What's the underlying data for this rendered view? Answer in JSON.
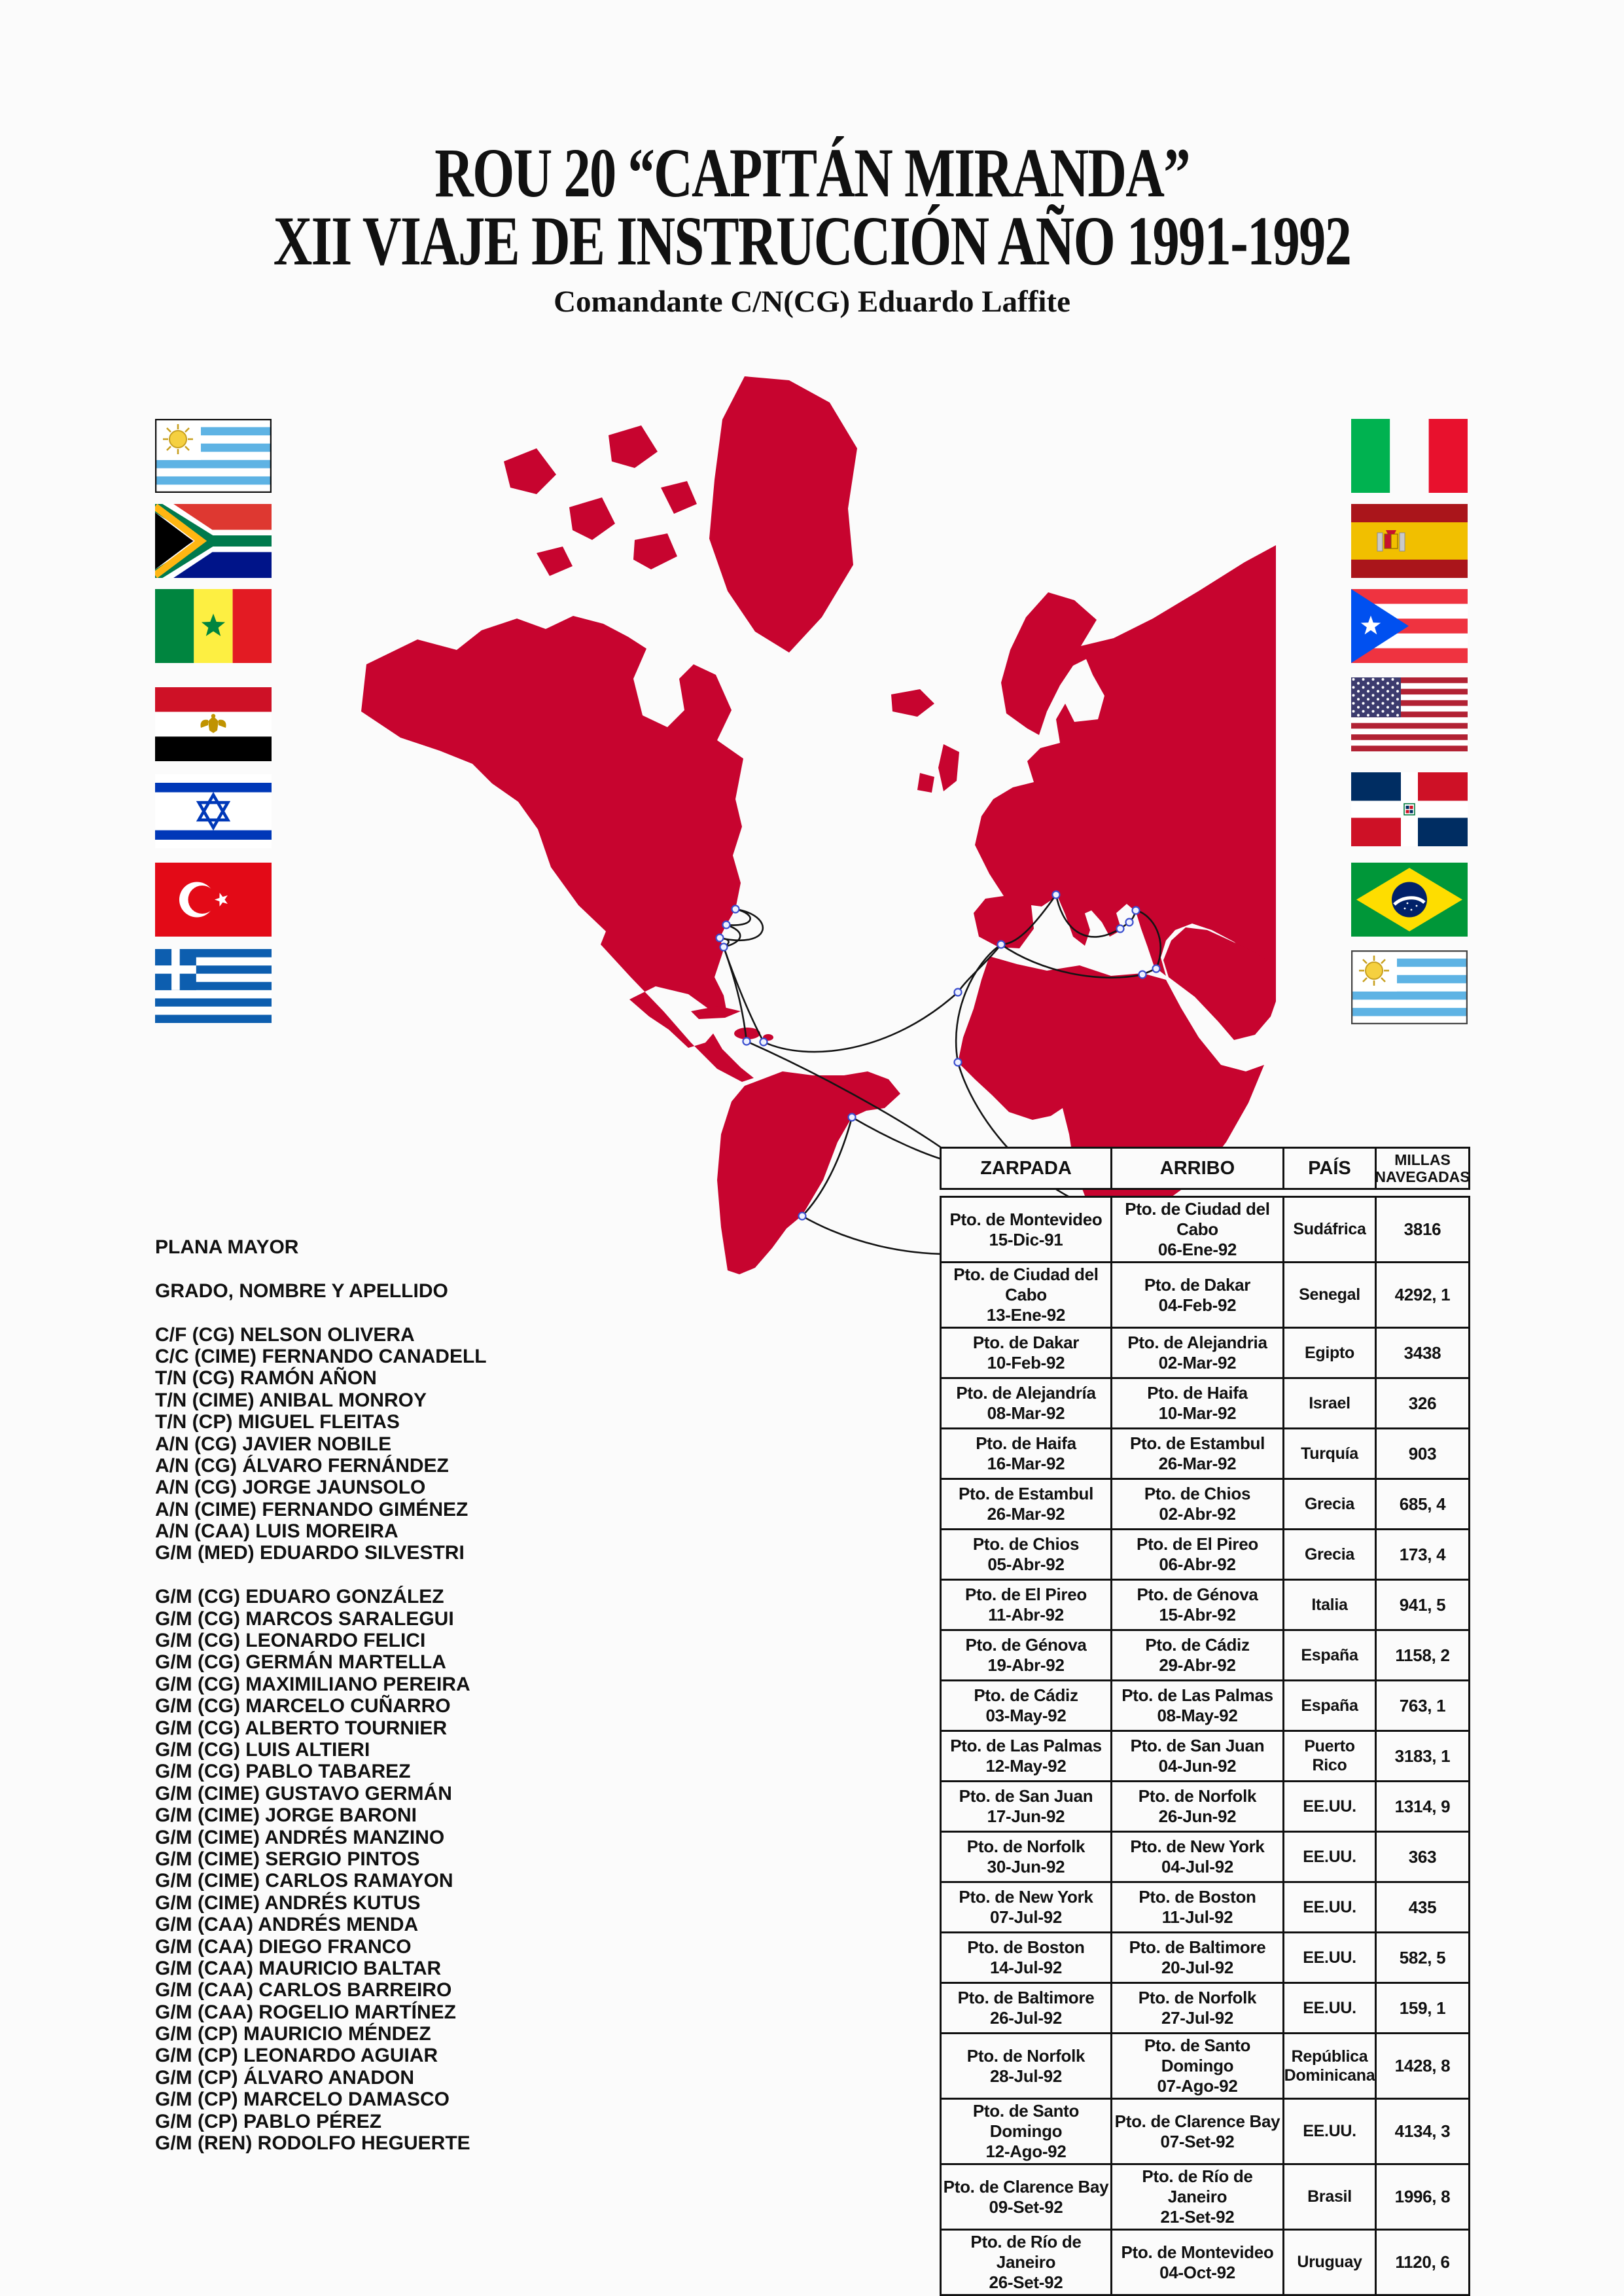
{
  "title": {
    "line1": "ROU 20 “CAPITÁN MIRANDA”",
    "line2": "XII VIAJE DE INSTRUCCIÓN AÑO 1991-1992",
    "subtitle": "Comandante C/N(CG) Eduardo Laffite"
  },
  "colors": {
    "map_red": "#C7042F",
    "background": "#FBFBFB",
    "route_line": "#141414",
    "port_marker_stroke": "#3A4ECF"
  },
  "flags": {
    "left": [
      "Uruguay",
      "Sudáfrica",
      "Senegal",
      "Egipto",
      "Israel",
      "Turquía",
      "Grecia"
    ],
    "right": [
      "Italia",
      "España",
      "Puerto Rico",
      "EE.UU.",
      "República Dominicana",
      "Brasil",
      "Uruguay"
    ]
  },
  "crew": {
    "title": "PLANA MAYOR",
    "subtitle": "GRADO, NOMBRE Y APELLIDO",
    "officers": [
      "C/F (CG) NELSON OLIVERA",
      "C/C (CIME) FERNANDO CANADELL",
      "T/N (CG) RAMÓN AÑON",
      "T/N (CIME) ANIBAL MONROY",
      "T/N (CP) MIGUEL FLEITAS",
      "A/N (CG) JAVIER NOBILE",
      "A/N (CG) ÁLVARO FERNÁNDEZ",
      "A/N (CG) JORGE JAUNSOLO",
      "A/N (CIME) FERNANDO GIMÉNEZ",
      "A/N (CAA) LUIS MOREIRA",
      "G/M (MED) EDUARDO SILVESTRI"
    ],
    "cadets": [
      "G/M (CG) EDUARO GONZÁLEZ",
      "G/M (CG) MARCOS SARALEGUI",
      "G/M (CG) LEONARDO FELICI",
      "G/M (CG) GERMÁN MARTELLA",
      "G/M (CG) MAXIMILIANO PEREIRA",
      "G/M (CG) MARCELO CUÑARRO",
      "G/M (CG) ALBERTO TOURNIER",
      "G/M (CG) LUIS ALTIERI",
      "G/M (CG) PABLO TABAREZ",
      "G/M (CIME) GUSTAVO GERMÁN",
      "G/M (CIME) JORGE BARONI",
      "G/M (CIME) ANDRÉS MANZINO",
      "G/M (CIME) SERGIO PINTOS",
      "G/M (CIME) CARLOS RAMAYON",
      "G/M (CIME) ANDRÉS KUTUS",
      "G/M (CAA) ANDRÉS MENDA",
      "G/M (CAA) DIEGO FRANCO",
      "G/M (CAA) MAURICIO BALTAR",
      "G/M (CAA) CARLOS BARREIRO",
      "G/M (CAA) ROGELIO MARTÍNEZ",
      "G/M (CP) MAURICIO MÉNDEZ",
      "G/M (CP) LEONARDO AGUIAR",
      "G/M (CP) ÁLVARO ANADON",
      "G/M (CP) MARCELO DAMASCO",
      "G/M (CP) PABLO PÉREZ",
      "G/M (REN) RODOLFO HEGUERTE"
    ]
  },
  "table": {
    "headers": [
      "ZARPADA",
      "ARRIBO",
      "PAÍS",
      "MILLAS NAVEGADAS"
    ],
    "rows": [
      [
        "Pto. de Montevideo",
        "15-Dic-91",
        "Pto. de Ciudad del Cabo",
        "06-Ene-92",
        "Sudáfrica",
        "3816"
      ],
      [
        "Pto. de Ciudad del Cabo",
        "13-Ene-92",
        "Pto. de Dakar",
        "04-Feb-92",
        "Senegal",
        "4292, 1"
      ],
      [
        "Pto. de Dakar",
        "10-Feb-92",
        "Pto. de Alejandria",
        "02-Mar-92",
        "Egipto",
        "3438"
      ],
      [
        "Pto. de Alejandría",
        "08-Mar-92",
        "Pto. de Haifa",
        "10-Mar-92",
        "Israel",
        "326"
      ],
      [
        "Pto. de Haifa",
        "16-Mar-92",
        "Pto. de Estambul",
        "26-Mar-92",
        "Turquía",
        "903"
      ],
      [
        "Pto. de Estambul",
        "26-Mar-92",
        "Pto. de Chios",
        "02-Abr-92",
        "Grecia",
        "685, 4"
      ],
      [
        "Pto. de Chios",
        "05-Abr-92",
        "Pto. de El Pireo",
        "06-Abr-92",
        "Grecia",
        "173, 4"
      ],
      [
        "Pto. de El Pireo",
        "11-Abr-92",
        "Pto. de Génova",
        "15-Abr-92",
        "Italia",
        "941, 5"
      ],
      [
        "Pto. de Génova",
        "19-Abr-92",
        "Pto. de Cádiz",
        "29-Abr-92",
        "España",
        "1158, 2"
      ],
      [
        "Pto. de Cádiz",
        "03-May-92",
        "Pto. de Las Palmas",
        "08-May-92",
        "España",
        "763, 1"
      ],
      [
        "Pto. de Las Palmas",
        "12-May-92",
        "Pto. de San Juan",
        "04-Jun-92",
        "Puerto Rico",
        "3183, 1"
      ],
      [
        "Pto. de San Juan",
        "17-Jun-92",
        "Pto. de Norfolk",
        "26-Jun-92",
        "EE.UU.",
        "1314, 9"
      ],
      [
        "Pto. de Norfolk",
        "30-Jun-92",
        "Pto. de New York",
        "04-Jul-92",
        "EE.UU.",
        "363"
      ],
      [
        "Pto. de New York",
        "07-Jul-92",
        "Pto. de Boston",
        "11-Jul-92",
        "EE.UU.",
        "435"
      ],
      [
        "Pto. de Boston",
        "14-Jul-92",
        "Pto. de Baltimore",
        "20-Jul-92",
        "EE.UU.",
        "582, 5"
      ],
      [
        "Pto. de Baltimore",
        "26-Jul-92",
        "Pto. de Norfolk",
        "27-Jul-92",
        "EE.UU.",
        "159, 1"
      ],
      [
        "Pto. de Norfolk",
        "28-Jul-92",
        "Pto. de Santo Domingo",
        "07-Ago-92",
        "República Dominicana",
        "1428, 8"
      ],
      [
        "Pto. de Santo Domingo",
        "12-Ago-92",
        "Pto. de Clarence Bay",
        "07-Set-92",
        "EE.UU.",
        "4134, 3"
      ],
      [
        "Pto. de Clarence Bay",
        "09-Set-92",
        "Pto. de Río de Janeiro",
        "21-Set-92",
        "Brasil",
        "1996, 8"
      ],
      [
        "Pto. de Río de Janeiro",
        "26-Set-92",
        "Pto. de Montevideo",
        "04-Oct-92",
        "Uruguay",
        "1120, 6"
      ]
    ]
  }
}
